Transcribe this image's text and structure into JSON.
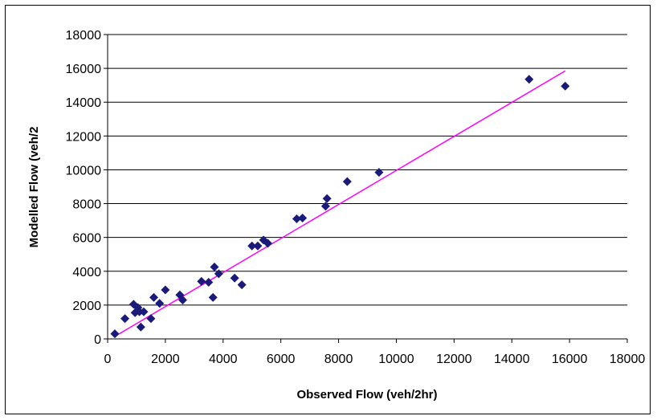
{
  "chart_data": {
    "type": "scatter",
    "title": "",
    "xlabel": "Observed Flow (veh/2hr)",
    "ylabel": "Modelled Flow (veh/2",
    "xlim": [
      0,
      18000
    ],
    "ylim": [
      0,
      18000
    ],
    "x_ticks": [
      0,
      2000,
      4000,
      6000,
      8000,
      10000,
      12000,
      14000,
      16000,
      18000
    ],
    "y_ticks": [
      0,
      2000,
      4000,
      6000,
      8000,
      10000,
      12000,
      14000,
      16000,
      18000
    ],
    "grid": "horizontal",
    "legend": "none",
    "colors": {
      "points": "#1a1a7a",
      "trendline": "#ff00ff",
      "grid": "#000000"
    },
    "series": [
      {
        "values": [
          [
            250,
            300
          ],
          [
            600,
            1200
          ],
          [
            900,
            2050
          ],
          [
            950,
            1550
          ],
          [
            1050,
            1850
          ],
          [
            1100,
            1600
          ],
          [
            1150,
            700
          ],
          [
            1250,
            1600
          ],
          [
            1500,
            1200
          ],
          [
            1600,
            2450
          ],
          [
            1800,
            2100
          ],
          [
            2000,
            2900
          ],
          [
            2500,
            2600
          ],
          [
            2600,
            2300
          ],
          [
            3250,
            3400
          ],
          [
            3500,
            3350
          ],
          [
            3650,
            2450
          ],
          [
            3700,
            4250
          ],
          [
            3850,
            3850
          ],
          [
            4400,
            3600
          ],
          [
            4650,
            3200
          ],
          [
            5000,
            5500
          ],
          [
            5200,
            5500
          ],
          [
            5400,
            5850
          ],
          [
            5550,
            5650
          ],
          [
            6550,
            7100
          ],
          [
            6750,
            7150
          ],
          [
            7550,
            7850
          ],
          [
            7600,
            8300
          ],
          [
            8300,
            9300
          ],
          [
            9400,
            9850
          ],
          [
            14600,
            15350
          ],
          [
            15850,
            14950
          ]
        ]
      }
    ],
    "trendline": {
      "x": [
        250,
        15850
      ],
      "y": [
        150,
        15850
      ]
    }
  }
}
